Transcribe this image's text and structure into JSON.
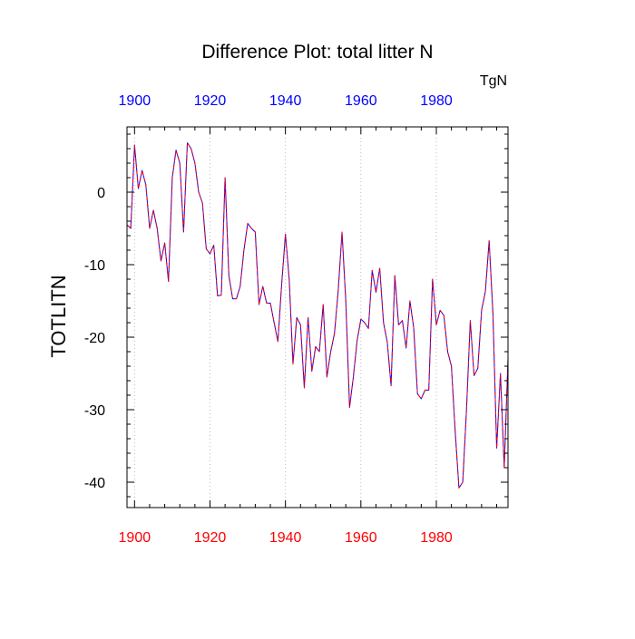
{
  "chart_data": {
    "type": "line",
    "title": "Difference Plot: total litter N",
    "units_label": "TgN",
    "ylabel": "TOTLITN",
    "xlabel": "",
    "xlim": [
      1898,
      1999
    ],
    "ylim": [
      -43.5,
      9
    ],
    "x_ticks": [
      1900,
      1920,
      1940,
      1960,
      1980
    ],
    "y_ticks": [
      0,
      -10,
      -20,
      -30,
      -40
    ],
    "y_tick_labels": [
      "0",
      "-10",
      "-20",
      "-30",
      "-40"
    ],
    "grid": "vertical-dotted-at-x-ticks",
    "colors": {
      "top_axis_labels": "#0000ff",
      "bottom_axis_labels": "#ff0000",
      "series_a": "#0000ff",
      "series_b": "#ff0000",
      "grid": "#bbbbbb",
      "frame": "#000000"
    },
    "x": [
      1898,
      1899,
      1900,
      1901,
      1902,
      1903,
      1904,
      1905,
      1906,
      1907,
      1908,
      1909,
      1910,
      1911,
      1912,
      1913,
      1914,
      1915,
      1916,
      1917,
      1918,
      1919,
      1920,
      1921,
      1922,
      1923,
      1924,
      1925,
      1926,
      1927,
      1928,
      1929,
      1930,
      1931,
      1932,
      1933,
      1934,
      1935,
      1936,
      1937,
      1938,
      1939,
      1940,
      1941,
      1942,
      1943,
      1944,
      1945,
      1946,
      1947,
      1948,
      1949,
      1950,
      1951,
      1952,
      1953,
      1954,
      1955,
      1956,
      1957,
      1958,
      1959,
      1960,
      1961,
      1962,
      1963,
      1964,
      1965,
      1966,
      1967,
      1968,
      1969,
      1970,
      1971,
      1972,
      1973,
      1974,
      1975,
      1976,
      1977,
      1978,
      1979,
      1980,
      1981,
      1982,
      1983,
      1984,
      1985,
      1986,
      1987,
      1988,
      1989,
      1990,
      1991,
      1992,
      1993,
      1994,
      1995,
      1996,
      1997,
      1998,
      1999
    ],
    "series": [
      {
        "values": [
          -4.5,
          -5.0,
          6.5,
          0.5,
          3.0,
          1.0,
          -5.0,
          -2.5,
          -5.0,
          -9.5,
          -7.0,
          -12.3,
          2.0,
          5.8,
          4.0,
          -5.5,
          6.8,
          6.0,
          4.0,
          0.0,
          -1.5,
          -7.8,
          -8.5,
          -7.3,
          -14.3,
          -14.2,
          2.0,
          -11.5,
          -14.7,
          -14.7,
          -13.0,
          -8.0,
          -4.3,
          -5.0,
          -5.5,
          -15.5,
          -13.0,
          -15.3,
          -15.3,
          -18.0,
          -20.6,
          -12.7,
          -5.8,
          -12.0,
          -23.7,
          -17.3,
          -18.3,
          -27.0,
          -17.3,
          -24.7,
          -21.3,
          -22.0,
          -15.5,
          -25.5,
          -22.0,
          -19.5,
          -13.5,
          -5.5,
          -15.0,
          -29.7,
          -25.5,
          -20.5,
          -17.5,
          -18.0,
          -18.8,
          -10.8,
          -13.8,
          -10.5,
          -18.0,
          -20.7,
          -26.7,
          -11.5,
          -18.3,
          -17.7,
          -21.5,
          -15.0,
          -18.7,
          -27.8,
          -28.5,
          -27.3,
          -27.3,
          -12.0,
          -18.3,
          -16.3,
          -17.0,
          -22.0,
          -24.0,
          -33.0,
          -40.8,
          -40.0,
          -30.0,
          -17.7,
          -25.3,
          -24.3,
          -16.3,
          -13.7,
          -6.7,
          -16.7,
          -35.3,
          -25.0,
          -38.0,
          -23.0
        ]
      },
      {
        "values": [
          -4.5,
          -5.0,
          6.5,
          0.5,
          3.0,
          1.0,
          -5.0,
          -2.5,
          -5.0,
          -9.5,
          -7.0,
          -12.3,
          2.0,
          5.8,
          4.0,
          -5.5,
          6.8,
          6.0,
          4.0,
          0.0,
          -1.5,
          -7.8,
          -8.5,
          -7.3,
          -14.3,
          -14.2,
          2.0,
          -11.5,
          -14.7,
          -14.7,
          -13.0,
          -8.0,
          -4.3,
          -5.0,
          -5.5,
          -15.5,
          -13.0,
          -15.3,
          -15.3,
          -18.0,
          -20.6,
          -12.7,
          -5.8,
          -12.0,
          -23.7,
          -17.3,
          -18.3,
          -27.0,
          -17.3,
          -24.7,
          -21.3,
          -22.0,
          -15.5,
          -25.5,
          -22.0,
          -19.5,
          -13.5,
          -5.5,
          -15.0,
          -29.7,
          -25.5,
          -20.5,
          -17.5,
          -18.0,
          -18.8,
          -10.8,
          -13.8,
          -10.5,
          -18.0,
          -20.7,
          -26.7,
          -11.5,
          -18.3,
          -17.7,
          -21.5,
          -15.0,
          -18.7,
          -27.8,
          -28.5,
          -27.3,
          -27.3,
          -12.0,
          -18.3,
          -16.3,
          -17.0,
          -22.0,
          -24.0,
          -33.0,
          -40.8,
          -40.0,
          -30.0,
          -17.7,
          -25.3,
          -24.3,
          -16.3,
          -13.7,
          -6.7,
          -16.7,
          -35.3,
          -25.0,
          -38.0,
          -23.0
        ]
      }
    ]
  }
}
